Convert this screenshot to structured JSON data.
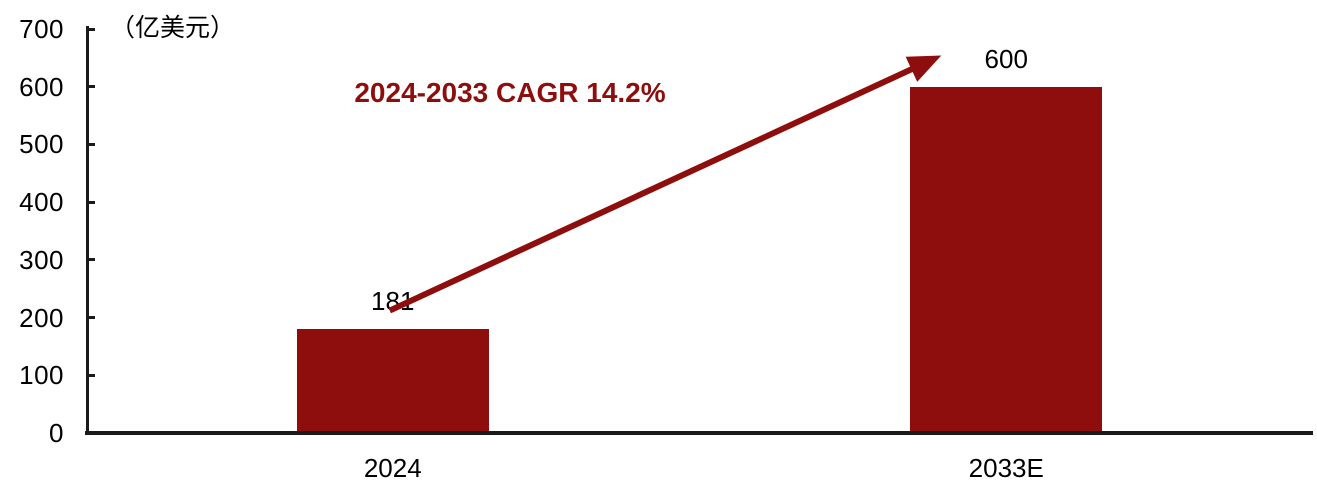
{
  "chart_data": {
    "type": "bar",
    "title": "",
    "unit_label": "（亿美元）",
    "categories": [
      "2024",
      "2033E"
    ],
    "values": [
      181,
      600
    ],
    "value_labels": [
      "181",
      "600"
    ],
    "xlabel": "",
    "ylabel": "亿美元",
    "ylim": [
      0,
      700
    ],
    "yticks": [
      0,
      100,
      200,
      300,
      400,
      500,
      600,
      700
    ],
    "grid": false,
    "legend": "none",
    "annotation": {
      "text": "2024-2033 CAGR 14.2%",
      "type": "growth-arrow"
    },
    "colors": {
      "bar": "#8E0E0E",
      "arrow": "#8E0E0E",
      "annotation_text": "#8E0E0E",
      "axis": "#1a1a1a",
      "label_text": "#000000"
    }
  }
}
